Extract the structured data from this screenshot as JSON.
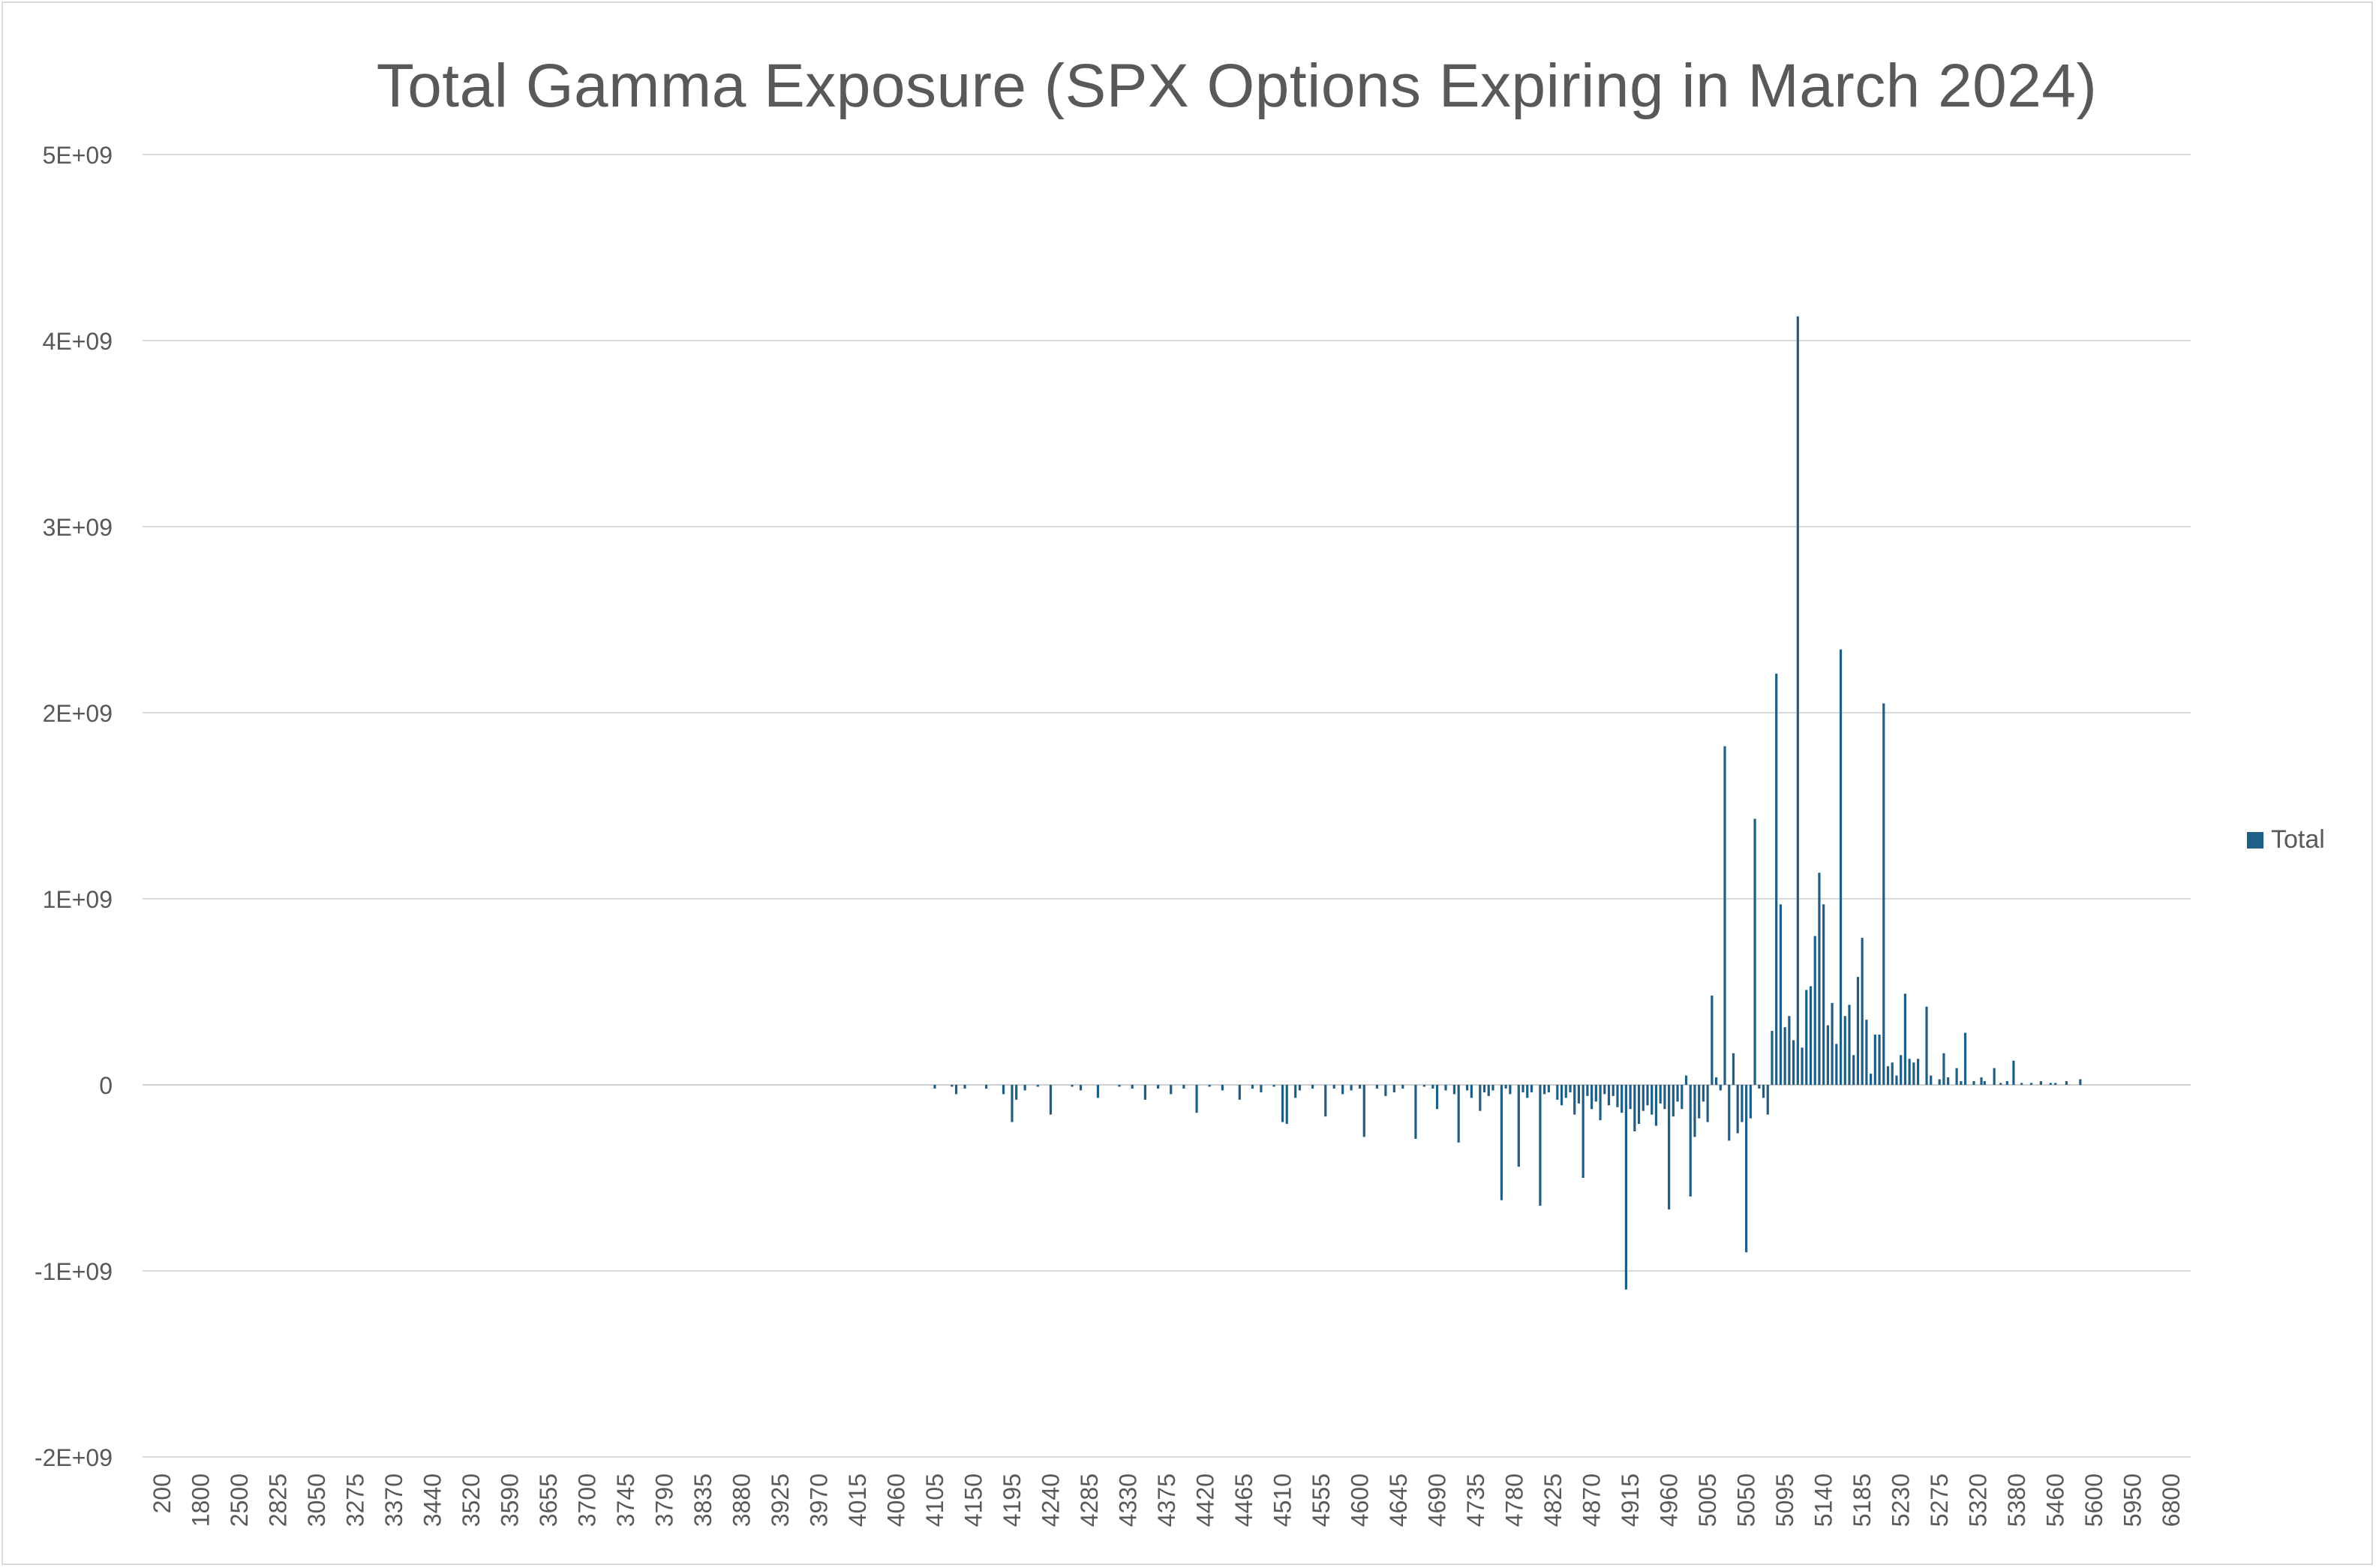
{
  "chart_data": {
    "type": "bar",
    "title": "Total Gamma Exposure (SPX Options Expiring in March 2024)",
    "xlabel": "",
    "ylabel": "",
    "ylim": [
      -2000000000,
      5000000000
    ],
    "y_ticks": [
      "-2E+09",
      "-1E+09",
      "0",
      "1E+09",
      "2E+09",
      "3E+09",
      "4E+09",
      "5E+09"
    ],
    "y_tick_values": [
      -2000000000,
      -1000000000,
      0,
      1000000000,
      2000000000,
      3000000000,
      4000000000,
      5000000000
    ],
    "grid": true,
    "legend_position": "right",
    "bar_color": "#1f5f86",
    "category_labels": [
      "200",
      "1800",
      "2500",
      "2825",
      "3050",
      "3275",
      "3370",
      "3440",
      "3520",
      "3590",
      "3655",
      "3700",
      "3745",
      "3790",
      "3835",
      "3880",
      "3925",
      "3970",
      "4015",
      "4060",
      "4105",
      "4150",
      "4195",
      "4240",
      "4285",
      "4330",
      "4375",
      "4420",
      "4465",
      "4510",
      "4555",
      "4600",
      "4645",
      "4690",
      "4735",
      "4780",
      "4825",
      "4870",
      "4915",
      "4960",
      "5005",
      "5050",
      "5095",
      "5140",
      "5185",
      "5230",
      "5275",
      "5320",
      "5380",
      "5460",
      "5600",
      "5950",
      "6800"
    ],
    "series": [
      {
        "name": "Total",
        "points": [
          [
            4105,
            -0.02
          ],
          [
            4125,
            -0.01
          ],
          [
            4130,
            -0.05
          ],
          [
            4140,
            -0.02
          ],
          [
            4165,
            -0.02
          ],
          [
            4185,
            -0.05
          ],
          [
            4195,
            -0.2
          ],
          [
            4200,
            -0.08
          ],
          [
            4210,
            -0.03
          ],
          [
            4225,
            -0.01
          ],
          [
            4240,
            -0.16
          ],
          [
            4265,
            -0.01
          ],
          [
            4275,
            -0.03
          ],
          [
            4295,
            -0.07
          ],
          [
            4320,
            -0.01
          ],
          [
            4335,
            -0.02
          ],
          [
            4350,
            -0.08
          ],
          [
            4365,
            -0.02
          ],
          [
            4380,
            -0.05
          ],
          [
            4395,
            -0.02
          ],
          [
            4410,
            -0.15
          ],
          [
            4425,
            -0.01
          ],
          [
            4440,
            -0.03
          ],
          [
            4460,
            -0.08
          ],
          [
            4475,
            -0.02
          ],
          [
            4485,
            -0.04
          ],
          [
            4500,
            -0.01
          ],
          [
            4510,
            -0.2
          ],
          [
            4515,
            -0.21
          ],
          [
            4525,
            -0.07
          ],
          [
            4530,
            -0.03
          ],
          [
            4545,
            -0.02
          ],
          [
            4560,
            -0.17
          ],
          [
            4570,
            -0.02
          ],
          [
            4580,
            -0.05
          ],
          [
            4590,
            -0.03
          ],
          [
            4600,
            -0.02
          ],
          [
            4605,
            -0.28
          ],
          [
            4620,
            -0.02
          ],
          [
            4630,
            -0.06
          ],
          [
            4640,
            -0.04
          ],
          [
            4650,
            -0.02
          ],
          [
            4665,
            -0.29
          ],
          [
            4675,
            -0.01
          ],
          [
            4685,
            -0.02
          ],
          [
            4690,
            -0.13
          ],
          [
            4700,
            -0.03
          ],
          [
            4710,
            -0.05
          ],
          [
            4715,
            -0.31
          ],
          [
            4725,
            -0.03
          ],
          [
            4730,
            -0.07
          ],
          [
            4740,
            -0.14
          ],
          [
            4745,
            -0.04
          ],
          [
            4750,
            -0.06
          ],
          [
            4755,
            -0.03
          ],
          [
            4765,
            -0.62
          ],
          [
            4770,
            -0.02
          ],
          [
            4775,
            -0.05
          ],
          [
            4785,
            -0.44
          ],
          [
            4790,
            -0.04
          ],
          [
            4795,
            -0.07
          ],
          [
            4800,
            -0.04
          ],
          [
            4810,
            -0.65
          ],
          [
            4815,
            -0.05
          ],
          [
            4820,
            -0.04
          ],
          [
            4830,
            -0.08
          ],
          [
            4835,
            -0.11
          ],
          [
            4840,
            -0.07
          ],
          [
            4845,
            -0.04
          ],
          [
            4850,
            -0.16
          ],
          [
            4855,
            -0.1
          ],
          [
            4860,
            -0.5
          ],
          [
            4865,
            -0.06
          ],
          [
            4870,
            -0.13
          ],
          [
            4875,
            -0.09
          ],
          [
            4880,
            -0.19
          ],
          [
            4885,
            -0.05
          ],
          [
            4890,
            -0.11
          ],
          [
            4895,
            -0.06
          ],
          [
            4900,
            -0.12
          ],
          [
            4905,
            -0.15
          ],
          [
            4910,
            -1.1
          ],
          [
            4915,
            -0.13
          ],
          [
            4920,
            -0.25
          ],
          [
            4925,
            -0.21
          ],
          [
            4930,
            -0.14
          ],
          [
            4935,
            -0.11
          ],
          [
            4940,
            -0.16
          ],
          [
            4945,
            -0.22
          ],
          [
            4950,
            -0.1
          ],
          [
            4955,
            -0.13
          ],
          [
            4960,
            -0.67
          ],
          [
            4965,
            -0.17
          ],
          [
            4970,
            -0.09
          ],
          [
            4975,
            -0.13
          ],
          [
            4980,
            0.05
          ],
          [
            4985,
            -0.6
          ],
          [
            4990,
            -0.28
          ],
          [
            4995,
            -0.18
          ],
          [
            5000,
            -0.09
          ],
          [
            5005,
            -0.2
          ],
          [
            5010,
            0.48
          ],
          [
            5015,
            0.04
          ],
          [
            5020,
            -0.03
          ],
          [
            5025,
            1.82
          ],
          [
            5030,
            -0.3
          ],
          [
            5035,
            0.17
          ],
          [
            5040,
            -0.26
          ],
          [
            5045,
            -0.2
          ],
          [
            5050,
            -0.9
          ],
          [
            5055,
            -0.18
          ],
          [
            5060,
            1.43
          ],
          [
            5065,
            -0.02
          ],
          [
            5070,
            -0.07
          ],
          [
            5075,
            -0.16
          ],
          [
            5080,
            0.29
          ],
          [
            5085,
            2.21
          ],
          [
            5090,
            0.97
          ],
          [
            5095,
            0.31
          ],
          [
            5100,
            0.37
          ],
          [
            5105,
            0.24
          ],
          [
            5110,
            4.13
          ],
          [
            5115,
            0.2
          ],
          [
            5120,
            0.51
          ],
          [
            5125,
            0.53
          ],
          [
            5130,
            0.8
          ],
          [
            5135,
            1.14
          ],
          [
            5140,
            0.97
          ],
          [
            5145,
            0.32
          ],
          [
            5150,
            0.44
          ],
          [
            5155,
            0.22
          ],
          [
            5160,
            2.34
          ],
          [
            5165,
            0.37
          ],
          [
            5170,
            0.43
          ],
          [
            5175,
            0.16
          ],
          [
            5180,
            0.58
          ],
          [
            5185,
            0.79
          ],
          [
            5190,
            0.35
          ],
          [
            5195,
            0.06
          ],
          [
            5200,
            0.27
          ],
          [
            5205,
            0.27
          ],
          [
            5210,
            2.05
          ],
          [
            5215,
            0.1
          ],
          [
            5220,
            0.12
          ],
          [
            5225,
            0.05
          ],
          [
            5230,
            0.16
          ],
          [
            5235,
            0.49
          ],
          [
            5240,
            0.14
          ],
          [
            5245,
            0.12
          ],
          [
            5250,
            0.14
          ],
          [
            5260,
            0.42
          ],
          [
            5265,
            0.05
          ],
          [
            5275,
            0.03
          ],
          [
            5280,
            0.17
          ],
          [
            5285,
            0.04
          ],
          [
            5295,
            0.09
          ],
          [
            5300,
            0.02
          ],
          [
            5305,
            0.28
          ],
          [
            5315,
            0.02
          ],
          [
            5325,
            0.04
          ],
          [
            5330,
            0.02
          ],
          [
            5345,
            0.09
          ],
          [
            5355,
            0.01
          ],
          [
            5365,
            0.02
          ],
          [
            5375,
            0.13
          ],
          [
            5390,
            0.01
          ],
          [
            5410,
            0.01
          ],
          [
            5430,
            0.02
          ],
          [
            5450,
            0.01
          ],
          [
            5460,
            0.01
          ],
          [
            5500,
            0.02
          ],
          [
            5550,
            0.03
          ]
        ]
      }
    ],
    "value_unit_note_scale": 1000000000
  }
}
